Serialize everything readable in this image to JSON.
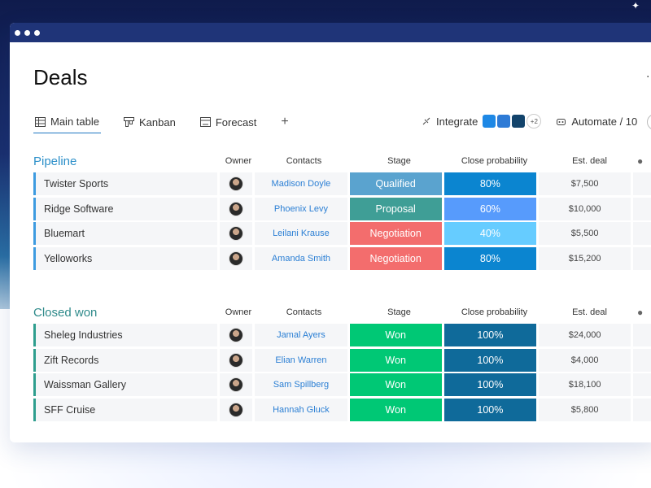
{
  "page": {
    "title": "Deals",
    "tabs": [
      {
        "label": "Main table",
        "icon": "table-icon"
      },
      {
        "label": "Kanban",
        "icon": "kanban-icon"
      },
      {
        "label": "Forecast",
        "icon": "forecast-icon"
      }
    ],
    "add_tab": "+",
    "integrate_label": "Integrate",
    "integrate_more": "+2",
    "automate_label": "Automate / 10"
  },
  "columns": {
    "owner": "Owner",
    "contacts": "Contacts",
    "stage": "Stage",
    "prob": "Close probability",
    "deal": "Est. deal"
  },
  "colors": {
    "qualified": "#5aa3cf",
    "proposal": "#3f9e96",
    "negotiation": "#f36d6d",
    "won": "#00c875",
    "p80": "#0b85d0",
    "p60": "#579bfc",
    "p40": "#66ccff",
    "p100": "#0f6a9a"
  },
  "pipeline": {
    "title": "Pipeline",
    "rows": [
      {
        "name": "Twister Sports",
        "contact": "Madison Doyle",
        "stage": "Qualified",
        "stage_color": "qualified",
        "prob": "80%",
        "prob_color": "p80",
        "deal": "$7,500"
      },
      {
        "name": "Ridge Software",
        "contact": "Phoenix Levy",
        "stage": "Proposal",
        "stage_color": "proposal",
        "prob": "60%",
        "prob_color": "p60",
        "deal": "$10,000"
      },
      {
        "name": "Bluemart",
        "contact": "Leilani Krause",
        "stage": "Negotiation",
        "stage_color": "negotiation",
        "prob": "40%",
        "prob_color": "p40",
        "deal": "$5,500"
      },
      {
        "name": "Yelloworks",
        "contact": "Amanda Smith",
        "stage": "Negotiation",
        "stage_color": "negotiation",
        "prob": "80%",
        "prob_color": "p80",
        "deal": "$15,200"
      }
    ]
  },
  "closed": {
    "title": "Closed won",
    "rows": [
      {
        "name": "Sheleg Industries",
        "contact": "Jamal Ayers",
        "stage": "Won",
        "stage_color": "won",
        "prob": "100%",
        "prob_color": "p100",
        "deal": "$24,000"
      },
      {
        "name": "Zift Records",
        "contact": "Elian Warren",
        "stage": "Won",
        "stage_color": "won",
        "prob": "100%",
        "prob_color": "p100",
        "deal": "$4,000"
      },
      {
        "name": "Waissman Gallery",
        "contact": "Sam Spillberg",
        "stage": "Won",
        "stage_color": "won",
        "prob": "100%",
        "prob_color": "p100",
        "deal": "$18,100"
      },
      {
        "name": "SFF Cruise",
        "contact": "Hannah Gluck",
        "stage": "Won",
        "stage_color": "won",
        "prob": "100%",
        "prob_color": "p100",
        "deal": "$5,800"
      }
    ]
  }
}
